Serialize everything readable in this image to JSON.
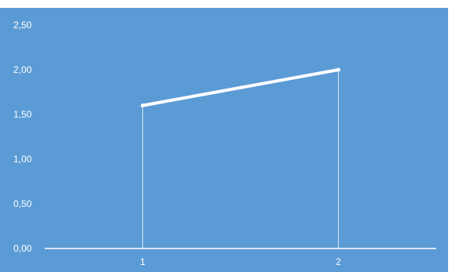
{
  "chart_data": {
    "type": "line",
    "x": [
      "1",
      "2"
    ],
    "series": [
      {
        "values": [
          1.6,
          2.0
        ]
      }
    ],
    "y_ticks": [
      "0,00",
      "0,50",
      "1,00",
      "1,50",
      "2,00",
      "2,50"
    ],
    "ylim": [
      0,
      2.5
    ],
    "title": "",
    "xlabel": "",
    "ylabel": "",
    "grid": false,
    "drop_lines": true,
    "colors": {
      "background": "#5b9bd5",
      "line": "#ffffff",
      "axis": "#ffffff",
      "text": "#ffffff"
    }
  }
}
